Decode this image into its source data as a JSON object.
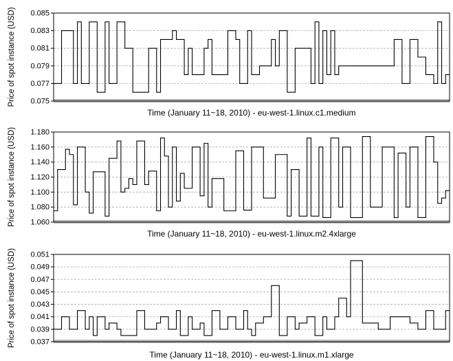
{
  "chart_data": [
    {
      "type": "line",
      "step": true,
      "ylabel": "Price of spot instance (USD)",
      "xlabel": "Time (January 11~18, 2010) - eu-west-1.linux.c1.medium",
      "ylim": [
        0.075,
        0.085
      ],
      "yticks": [
        "0.075",
        "0.077",
        "0.079",
        "0.081",
        "0.083",
        "0.085"
      ],
      "grid": "horizontal-dashed",
      "series": [
        {
          "x": [
            0,
            2,
            5,
            6,
            7,
            9,
            11,
            13,
            14,
            16,
            18,
            19,
            20,
            24,
            26,
            27,
            29,
            30,
            31,
            33,
            34,
            35,
            38,
            39,
            40,
            44,
            46,
            47,
            49,
            50,
            52,
            53,
            55,
            56,
            57,
            59,
            61,
            65,
            66,
            67,
            68,
            69,
            70,
            71,
            72,
            76,
            81,
            86,
            88,
            90,
            92,
            94,
            96,
            97,
            98,
            99,
            100
          ],
          "y": [
            0.077,
            0.083,
            0.077,
            0.084,
            0.077,
            0.084,
            0.076,
            0.084,
            0.077,
            0.084,
            0.081,
            0.081,
            0.076,
            0.081,
            0.076,
            0.082,
            0.082,
            0.083,
            0.082,
            0.078,
            0.081,
            0.078,
            0.081,
            0.082,
            0.078,
            0.083,
            0.082,
            0.077,
            0.083,
            0.078,
            0.079,
            0.079,
            0.082,
            0.079,
            0.083,
            0.076,
            0.081,
            0.077,
            0.084,
            0.077,
            0.083,
            0.078,
            0.083,
            0.078,
            0.079,
            0.079,
            0.079,
            0.082,
            0.077,
            0.082,
            0.08,
            0.078,
            0.077,
            0.084,
            0.077,
            0.078,
            0.078
          ]
        }
      ]
    },
    {
      "type": "line",
      "step": true,
      "ylabel": "Price of spot instance (USD)",
      "xlabel": "Time (January 11~18, 2010) - eu-west-1.linux.m2.4xlarge",
      "ylim": [
        1.06,
        1.18
      ],
      "yticks": [
        "1.060",
        "1.080",
        "1.100",
        "1.120",
        "1.140",
        "1.160",
        "1.180"
      ],
      "grid": "horizontal-dashed",
      "series": [
        {
          "x": [
            0,
            1,
            3,
            4,
            5,
            6,
            8,
            9,
            10,
            11,
            13,
            14,
            16,
            17,
            18,
            19,
            20,
            21,
            23,
            24,
            26,
            27,
            28,
            29,
            30,
            31,
            32,
            33,
            35,
            37,
            38,
            39,
            40,
            43,
            46,
            48,
            50,
            53,
            56,
            59,
            60,
            62,
            64,
            65,
            67,
            68,
            70,
            72,
            73,
            75,
            78,
            80,
            83,
            86,
            87,
            89,
            90,
            92,
            94,
            96,
            97,
            98,
            99,
            100
          ],
          "y": [
            1.075,
            1.13,
            1.157,
            1.15,
            1.083,
            1.16,
            1.1,
            1.072,
            1.127,
            1.127,
            1.068,
            1.145,
            1.168,
            1.1,
            1.105,
            1.118,
            1.11,
            1.168,
            1.11,
            1.128,
            1.075,
            1.172,
            1.148,
            1.08,
            1.16,
            1.088,
            1.125,
            1.105,
            1.16,
            1.095,
            1.165,
            1.08,
            1.118,
            1.075,
            1.155,
            1.076,
            1.16,
            1.092,
            1.15,
            1.068,
            1.13,
            1.068,
            1.172,
            1.068,
            1.16,
            1.066,
            1.172,
            1.08,
            1.16,
            1.066,
            1.174,
            1.08,
            1.16,
            1.066,
            1.152,
            1.08,
            1.16,
            1.066,
            1.174,
            1.14,
            1.085,
            1.092,
            1.102,
            1.102
          ]
        }
      ]
    },
    {
      "type": "line",
      "step": true,
      "ylabel": "Price of spot instance (USD)",
      "xlabel": "Time (January 11~18, 2010) - eu-west-1.linux.m1.xlarge",
      "ylim": [
        0.037,
        0.051
      ],
      "yticks": [
        "0.037",
        "0.039",
        "0.041",
        "0.043",
        "0.045",
        "0.047",
        "0.049",
        "0.051"
      ],
      "grid": "horizontal-dashed",
      "series": [
        {
          "x": [
            0,
            2,
            4,
            6,
            8,
            9,
            10,
            11,
            13,
            14,
            16,
            17,
            19,
            21,
            23,
            26,
            27,
            29,
            31,
            32,
            34,
            35,
            37,
            38,
            40,
            42,
            44,
            46,
            48,
            49,
            50,
            51,
            53,
            55,
            57,
            59,
            61,
            62,
            64,
            66,
            68,
            69,
            71,
            72,
            74,
            75,
            76,
            78,
            82,
            85,
            90,
            92,
            94,
            96,
            99,
            100
          ],
          "y": [
            0.039,
            0.041,
            0.039,
            0.042,
            0.039,
            0.041,
            0.038,
            0.041,
            0.039,
            0.04,
            0.039,
            0.038,
            0.038,
            0.042,
            0.039,
            0.04,
            0.041,
            0.039,
            0.042,
            0.038,
            0.041,
            0.039,
            0.04,
            0.038,
            0.042,
            0.039,
            0.041,
            0.039,
            0.042,
            0.039,
            0.038,
            0.04,
            0.041,
            0.046,
            0.038,
            0.041,
            0.039,
            0.04,
            0.041,
            0.038,
            0.041,
            0.039,
            0.041,
            0.044,
            0.041,
            0.05,
            0.05,
            0.04,
            0.039,
            0.041,
            0.04,
            0.039,
            0.042,
            0.039,
            0.042,
            0.042
          ]
        }
      ]
    }
  ]
}
